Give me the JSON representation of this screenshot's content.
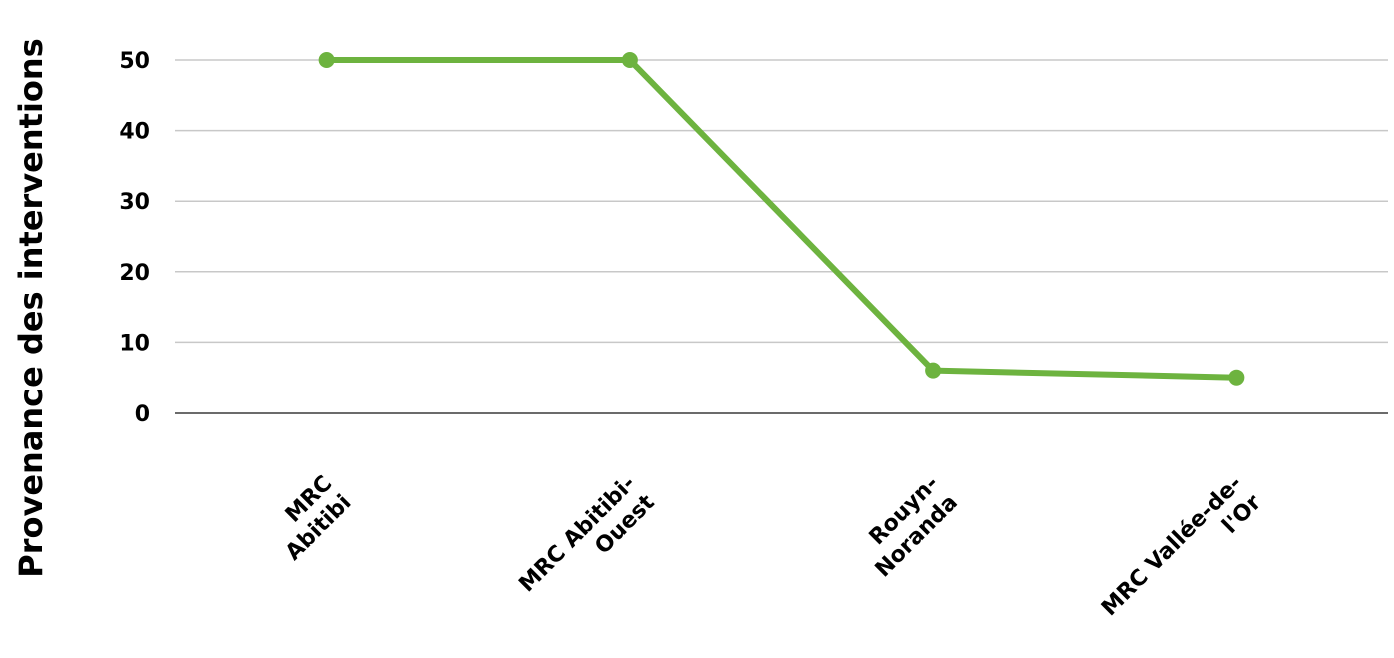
{
  "chart_data": {
    "type": "line",
    "categories": [
      "MRC Abitibi",
      "MRC Abitibi-Ouest",
      "Rouyn-Noranda",
      "MRC Vallée-de-l'Or"
    ],
    "category_lines": [
      [
        "MRC",
        "Abitibi"
      ],
      [
        "MRC Abitibi-",
        "Ouest"
      ],
      [
        "Rouyn-",
        "Noranda"
      ],
      [
        "MRC Vallée-de-",
        "l'Or"
      ]
    ],
    "series": [
      {
        "values": [
          50,
          50,
          6,
          5
        ],
        "color": "#6db33f"
      }
    ],
    "ylabel": "Provenance des interventions",
    "xlabel": "",
    "title": "",
    "ylim": [
      0,
      50
    ],
    "yticks": [
      0,
      10,
      20,
      30,
      40,
      50
    ],
    "grid": true,
    "legend": "none"
  }
}
